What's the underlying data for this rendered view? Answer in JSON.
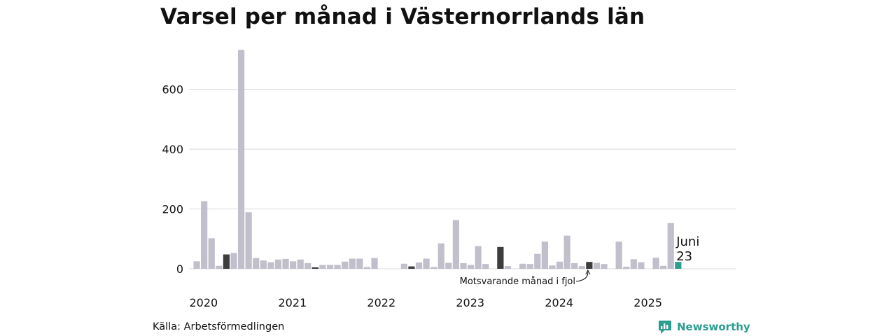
{
  "title": "Varsel per månad i Västernorrlands län",
  "source": "Källa: Arbetsförmedlingen",
  "brand": {
    "name": "Newsworthy",
    "icon": "newsworthy-logo-icon"
  },
  "colors": {
    "bar": "#c1bfcb",
    "highlight": "#3d3d3d",
    "current": "#2a9d8f",
    "grid": "#dadada",
    "brand": "#2a9d8f"
  },
  "annotations": {
    "last_month": "Juni",
    "last_value": "23",
    "same_month_last_year": "Motsvarande månad i fjol"
  },
  "chart_data": {
    "type": "bar",
    "title": "Varsel per månad i Västernorrlands län",
    "xlabel": "",
    "ylabel": "",
    "ylim": [
      0,
      750
    ],
    "yticks": [
      0,
      200,
      400,
      600
    ],
    "grid": true,
    "year_labels": [
      "2020",
      "2021",
      "2022",
      "2023",
      "2024",
      "2025"
    ],
    "start": "2020-01",
    "values": [
      25,
      226,
      102,
      10,
      48,
      53,
      732,
      189,
      36,
      28,
      22,
      31,
      33,
      25,
      31,
      19,
      5,
      13,
      13,
      13,
      24,
      34,
      34,
      6,
      36,
      0,
      0,
      0,
      17,
      8,
      21,
      34,
      6,
      85,
      20,
      163,
      19,
      13,
      76,
      16,
      0,
      73,
      9,
      0,
      17,
      16,
      50,
      91,
      11,
      24,
      111,
      19,
      9,
      23,
      20,
      16,
      0,
      91,
      7,
      32,
      22,
      0,
      37,
      10,
      153,
      23
    ],
    "highlight_indices": [
      4,
      16,
      29,
      41,
      53
    ],
    "current_index": 65
  }
}
